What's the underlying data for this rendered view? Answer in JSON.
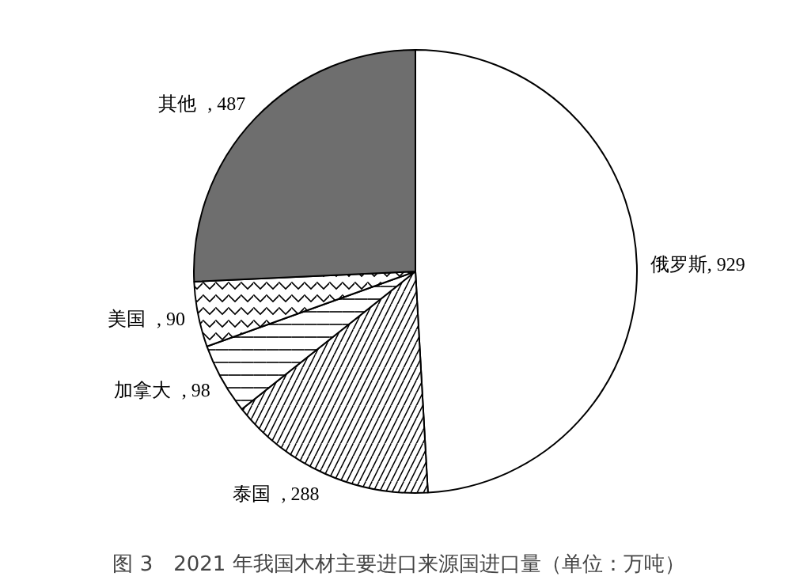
{
  "chart_data": {
    "type": "pie",
    "title": "图 3　2021 年我国木材主要进口来源国进口量（单位：万吨）",
    "categories": [
      "俄罗斯",
      "泰国",
      "加拿大",
      "美国",
      "其他"
    ],
    "values": [
      929,
      288,
      98,
      90,
      487
    ],
    "value_labels": [
      ", 929",
      ", 288",
      ", 98",
      ", 90",
      ", 487"
    ],
    "colors": [
      "#ffffff",
      "#ffffff",
      "#ffffff",
      "#ffffff",
      "#6e6e6e"
    ],
    "legend": false
  }
}
